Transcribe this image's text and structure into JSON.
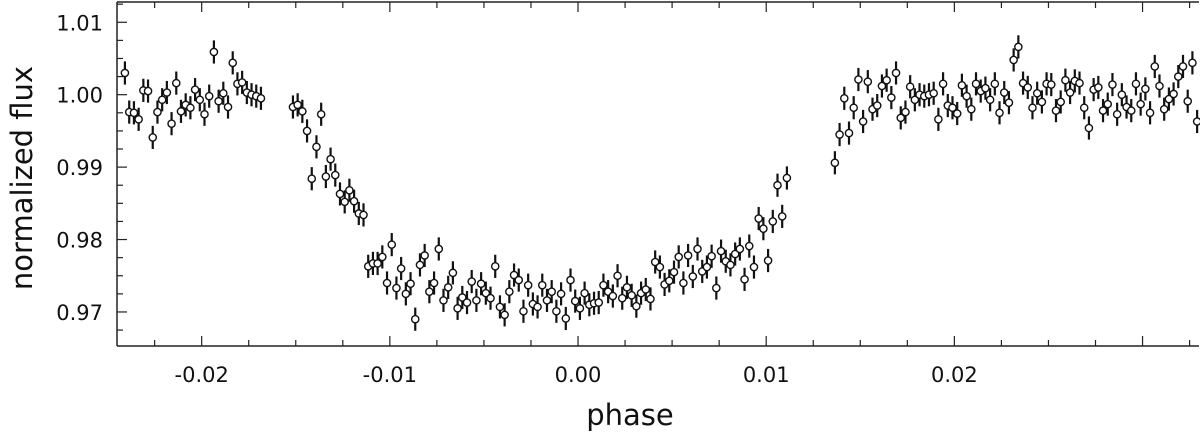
{
  "chart_data": {
    "type": "scatter",
    "title": "",
    "xlabel": "phase",
    "ylabel": "normalized flux",
    "xlim": [
      -0.0245,
      0.033
    ],
    "ylim": [
      0.9653,
      1.0128
    ],
    "grid": false,
    "legend": "none",
    "marker": "open-circle-with-error-bars",
    "error_bar_half_width": 0.0016,
    "x_ticks": [
      -0.02,
      -0.01,
      0.0,
      0.01,
      0.02
    ],
    "x_tick_labels": [
      "-0.02",
      "-0.01",
      "0.00",
      "0.01",
      "0.02"
    ],
    "y_ticks": [
      0.97,
      0.98,
      0.99,
      1.0,
      1.01
    ],
    "y_tick_labels": [
      "0.97",
      "0.98",
      "0.99",
      "1.00",
      "1.01"
    ],
    "series": [
      {
        "x": [
          -0.02408,
          -0.02385,
          -0.0236,
          -0.02335,
          -0.0231,
          -0.02285,
          -0.0226,
          -0.02235,
          -0.0221,
          -0.02185,
          -0.0216,
          -0.02135,
          -0.0211,
          -0.02085,
          -0.0206,
          -0.02035,
          -0.0201,
          -0.01985,
          -0.0196,
          -0.01935,
          -0.0191,
          -0.01885,
          -0.0186,
          -0.01835,
          -0.0181,
          -0.01785,
          -0.0176,
          -0.01735,
          -0.0171,
          -0.01685,
          -0.01515,
          -0.0149,
          -0.01465,
          -0.0144,
          -0.01415,
          -0.0139,
          -0.01365,
          -0.0134,
          -0.01315,
          -0.0129,
          -0.01265,
          -0.0124,
          -0.01215,
          -0.0119,
          -0.01165,
          -0.0114,
          -0.01115,
          -0.0109,
          -0.01065,
          -0.0104,
          -0.01015,
          -0.0099,
          -0.00965,
          -0.0094,
          -0.00915,
          -0.0089,
          -0.00865,
          -0.0084,
          -0.00815,
          -0.0079,
          -0.00765,
          -0.0074,
          -0.00715,
          -0.0069,
          -0.00665,
          -0.0064,
          -0.00615,
          -0.0059,
          -0.00565,
          -0.0054,
          -0.00515,
          -0.0049,
          -0.00465,
          -0.0044,
          -0.00415,
          -0.0039,
          -0.00365,
          -0.0034,
          -0.00315,
          -0.0029,
          -0.00265,
          -0.0024,
          -0.00215,
          -0.0019,
          -0.00165,
          -0.0014,
          -0.00115,
          -0.0009,
          -0.00065,
          -0.0004,
          -0.00015,
          0.0001,
          0.00035,
          0.0006,
          0.00085,
          0.0011,
          0.00135,
          0.0016,
          0.00185,
          0.0021,
          0.00235,
          0.0026,
          0.00285,
          0.0031,
          0.00335,
          0.0036,
          0.00385,
          0.0041,
          0.00435,
          0.0046,
          0.00485,
          0.0051,
          0.00535,
          0.0056,
          0.00585,
          0.0061,
          0.00635,
          0.0066,
          0.00685,
          0.0071,
          0.00735,
          0.0076,
          0.00785,
          0.0081,
          0.00835,
          0.0086,
          0.00885,
          0.0091,
          0.00935,
          0.0096,
          0.00985,
          0.0101,
          0.01035,
          0.0106,
          0.01085,
          0.0111,
          0.01365,
          0.0139,
          0.01415,
          0.0144,
          0.01465,
          0.0149,
          0.01515,
          0.0154,
          0.01565,
          0.0159,
          0.01615,
          0.0164,
          0.01665,
          0.0169,
          0.01715,
          0.0174,
          0.01765,
          0.0179,
          0.01815,
          0.0184,
          0.01865,
          0.0189,
          0.01915,
          0.0194,
          0.01965,
          0.0199,
          0.02015,
          0.0204,
          0.02065,
          0.0209,
          0.02115,
          0.0214,
          0.02165,
          0.0219,
          0.02215,
          0.0224,
          0.02265,
          0.0229,
          0.02315,
          0.0234,
          0.02365,
          0.0239,
          0.02415,
          0.0244,
          0.02465,
          0.0249,
          0.02515,
          0.0254,
          0.02565,
          0.0259,
          0.02615,
          0.0264,
          0.02665,
          0.0269,
          0.02715,
          0.0274,
          0.02765,
          0.0279,
          0.02815,
          0.0284,
          0.02865,
          0.0289,
          0.02915,
          0.0294,
          0.02965,
          0.0299,
          0.03015,
          0.0304,
          0.03065,
          0.0309,
          0.03115,
          0.0314,
          0.03165,
          0.0319,
          0.03215,
          0.0324,
          0.03265,
          0.0329
        ],
        "y": [
          1.003,
          0.9976,
          0.9975,
          0.9966,
          1.0006,
          1.0005,
          0.9941,
          0.9976,
          0.9993,
          1.0003,
          0.996,
          1.0016,
          0.9977,
          0.9986,
          0.9982,
          1.0007,
          0.9993,
          0.9973,
          0.9998,
          1.0059,
          0.9991,
          1.0002,
          0.9983,
          1.0044,
          1.0015,
          1.0017,
          1.0003,
          1.0,
          0.9998,
          0.9995,
          0.9983,
          0.9986,
          0.9977,
          0.995,
          0.9884,
          0.9928,
          0.9973,
          0.9887,
          0.9911,
          0.9889,
          0.9863,
          0.9852,
          0.9868,
          0.9853,
          0.9836,
          0.9834,
          0.9763,
          0.9767,
          0.9767,
          0.9776,
          0.974,
          0.9793,
          0.9733,
          0.976,
          0.9725,
          0.9739,
          0.969,
          0.9765,
          0.9778,
          0.9728,
          0.974,
          0.9787,
          0.9716,
          0.9734,
          0.9754,
          0.9705,
          0.972,
          0.9713,
          0.9742,
          0.9716,
          0.9739,
          0.9726,
          0.9719,
          0.9763,
          0.9707,
          0.9696,
          0.9728,
          0.9751,
          0.9744,
          0.9701,
          0.9737,
          0.9711,
          0.9707,
          0.9737,
          0.9716,
          0.9728,
          0.9701,
          0.9725,
          0.9691,
          0.9744,
          0.9715,
          0.9705,
          0.9726,
          0.971,
          0.9712,
          0.9713,
          0.9737,
          0.9728,
          0.9722,
          0.975,
          0.9719,
          0.9734,
          0.9723,
          0.9708,
          0.9726,
          0.9731,
          0.9718,
          0.9769,
          0.9762,
          0.9738,
          0.9743,
          0.9755,
          0.9776,
          0.974,
          0.9778,
          0.9749,
          0.9787,
          0.9756,
          0.9762,
          0.9777,
          0.9733,
          0.9784,
          0.977,
          0.9765,
          0.978,
          0.9787,
          0.9745,
          0.9791,
          0.9762,
          0.9829,
          0.9815,
          0.9771,
          0.9825,
          0.9875,
          0.9832,
          0.9885,
          0.9906,
          0.9945,
          0.9995,
          0.9947,
          0.9982,
          1.0021,
          0.9963,
          1.0018,
          0.998,
          0.9985,
          1.0012,
          1.002,
          0.9996,
          1.003,
          0.9968,
          0.9976,
          1.0011,
          0.9993,
          1.0,
          0.9998,
          1.0,
          1.0002,
          0.9966,
          1.0015,
          0.9985,
          0.9982,
          0.9974,
          1.0013,
          0.9998,
          0.998,
          1.0015,
          1.0005,
          1.0009,
          0.9993,
          1.0015,
          0.9975,
          1.0003,
          0.9989,
          1.0048,
          1.0066,
          1.0016,
          1.001,
          0.9982,
          1.0002,
          0.999,
          1.0015,
          1.0014,
          0.9978,
          0.999,
          1.002,
          1.0003,
          1.0019,
          1.0016,
          0.9982,
          0.9954,
          1.0007,
          1.001,
          0.9978,
          0.9987,
          1.0014,
          0.9973,
          1.0,
          0.9983,
          0.9978,
          1.0015,
          0.9987,
          1.0008,
          0.9975,
          1.0039,
          1.0012,
          0.998,
          0.9994,
          1.0001,
          1.0025,
          1.0039,
          0.9991,
          1.0044,
          0.9963
        ]
      }
    ]
  }
}
